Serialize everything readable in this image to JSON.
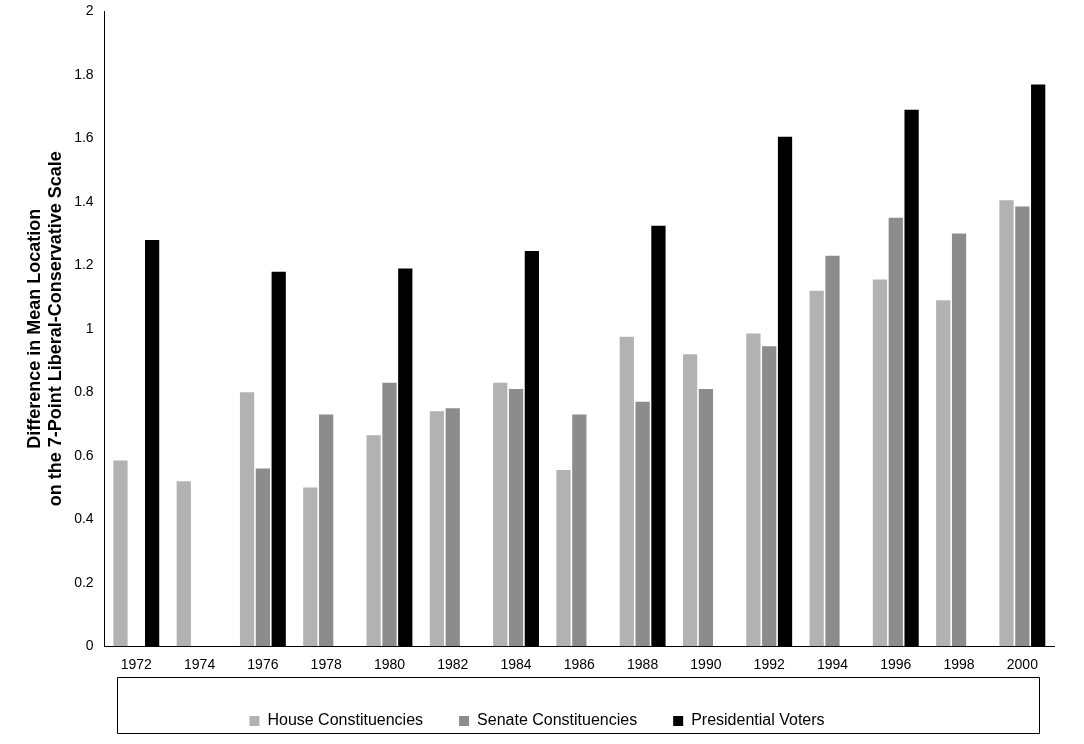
{
  "chart_data": {
    "type": "bar",
    "ylabel": "Difference in Mean Location on the 7-Point Liberal-Conservative Scale",
    "categories": [
      "1972",
      "1974",
      "1976",
      "1978",
      "1980",
      "1982",
      "1984",
      "1986",
      "1988",
      "1990",
      "1992",
      "1994",
      "1996",
      "1998",
      "2000"
    ],
    "series": [
      {
        "name": "House Constituencies",
        "color": "#b2b2b2",
        "values": [
          0.585,
          0.52,
          0.8,
          0.5,
          0.665,
          0.74,
          0.83,
          0.555,
          0.975,
          0.92,
          0.985,
          1.12,
          1.155,
          1.09,
          1.405
        ]
      },
      {
        "name": "Senate Constituencies",
        "color": "#8c8c8c",
        "values": [
          null,
          null,
          0.56,
          0.73,
          0.83,
          0.75,
          0.81,
          0.73,
          0.77,
          0.81,
          0.945,
          1.23,
          1.35,
          1.3,
          1.385
        ]
      },
      {
        "name": "Presidential Voters",
        "color": "#000000",
        "values": [
          1.28,
          null,
          1.18,
          null,
          1.19,
          null,
          1.245,
          null,
          1.325,
          null,
          1.605,
          null,
          1.69,
          null,
          1.77
        ]
      }
    ],
    "ylim": [
      0,
      2
    ],
    "yticks": [
      0,
      0.2,
      0.4,
      0.6,
      0.8,
      1,
      1.2,
      1.4,
      1.6,
      1.8,
      2
    ],
    "grid": false,
    "legend": "bottom"
  }
}
